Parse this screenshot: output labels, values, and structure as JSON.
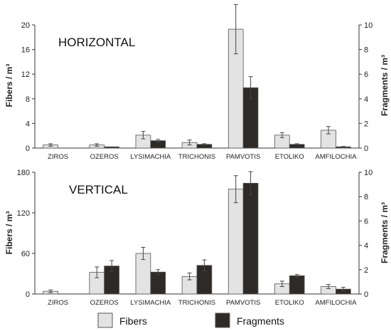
{
  "colors": {
    "fibers": "#e3e3e3",
    "fragments": "#2e2a27",
    "edge": "#555555"
  },
  "legend": {
    "fibers": "Fibers",
    "fragments": "Fragments"
  },
  "chart_data": [
    {
      "type": "bar",
      "title": "HORIZONTAL",
      "categories": [
        "ZIROS",
        "OZEROS",
        "LYSIMACHIA",
        "TRICHONIS",
        "PAMVOTIS",
        "ETOLIKO",
        "AMFILOCHIA"
      ],
      "ylabel_left": "Fibers / m³",
      "ylabel_right": "Fragments / m³",
      "ylim_left": [
        0,
        20
      ],
      "yticks_left": [
        0,
        4,
        8,
        12,
        16,
        20
      ],
      "ylim_right": [
        0,
        10
      ],
      "yticks_right": [
        0,
        2,
        4,
        6,
        8,
        10
      ],
      "grid": false,
      "series": [
        {
          "name": "Fibers",
          "axis": "left",
          "values": [
            0.5,
            0.5,
            2.1,
            0.9,
            19.3,
            2.1,
            2.9
          ],
          "errors": [
            0.2,
            0.2,
            0.6,
            0.4,
            4.0,
            0.4,
            0.6
          ]
        },
        {
          "name": "Fragments",
          "axis": "right",
          "values": [
            0.0,
            0.1,
            0.6,
            0.3,
            4.9,
            0.3,
            0.1
          ],
          "errors": [
            0.0,
            0.0,
            0.1,
            0.05,
            0.9,
            0.05,
            0.03
          ]
        }
      ]
    },
    {
      "type": "bar",
      "title": "VERTICAL",
      "categories": [
        "ZIROS",
        "OZEROS",
        "LYSIMACHIA",
        "TRICHONIS",
        "PAMVOTIS",
        "ETOLIKO",
        "AMFILOCHIA"
      ],
      "ylabel_left": "Fibers / m³",
      "ylabel_right": "Fragments / m³",
      "ylim_left": [
        0,
        180
      ],
      "yticks_left": [
        0,
        60,
        120,
        180
      ],
      "ylim_right": [
        0,
        10
      ],
      "yticks_right": [
        0,
        2,
        4,
        6,
        8,
        10
      ],
      "grid": false,
      "series": [
        {
          "name": "Fibers",
          "axis": "left",
          "values": [
            4,
            32,
            60,
            26,
            155,
            15,
            11
          ],
          "errors": [
            2,
            8,
            9,
            5,
            20,
            4,
            3
          ]
        },
        {
          "name": "Fragments",
          "axis": "right",
          "values": [
            0.0,
            2.3,
            1.8,
            2.35,
            9.1,
            1.5,
            0.4
          ],
          "errors": [
            0.0,
            0.45,
            0.2,
            0.45,
            0.95,
            0.1,
            0.15
          ]
        }
      ]
    }
  ]
}
